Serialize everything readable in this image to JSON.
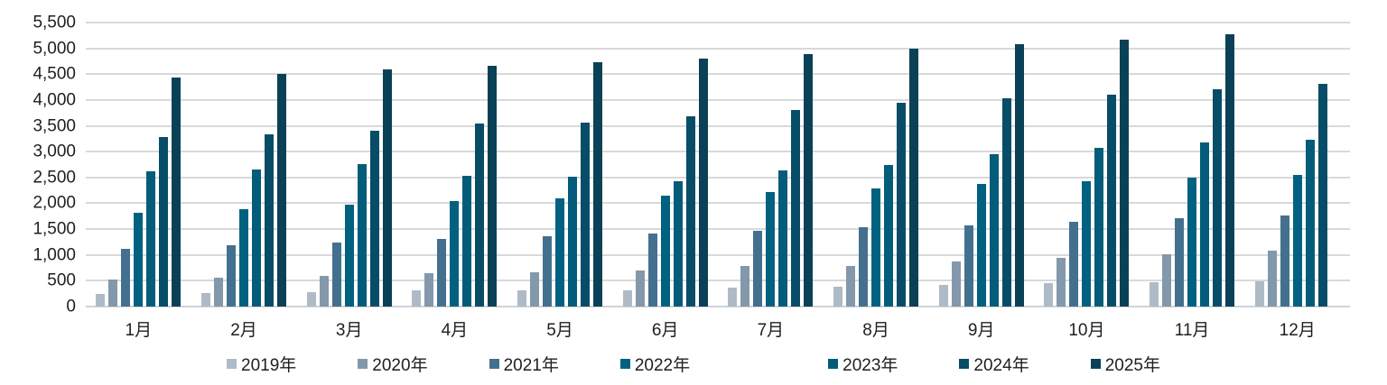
{
  "chart_data": {
    "type": "bar",
    "title": "",
    "categories": [
      "1月",
      "2月",
      "3月",
      "4月",
      "5月",
      "6月",
      "7月",
      "8月",
      "9月",
      "10月",
      "11月",
      "12月"
    ],
    "series": [
      {
        "name": "2019年",
        "color": "#aebbc7",
        "values": [
          240,
          260,
          280,
          310,
          310,
          320,
          360,
          390,
          420,
          450,
          470,
          490
        ]
      },
      {
        "name": "2020年",
        "color": "#8398ab",
        "values": [
          530,
          560,
          600,
          640,
          660,
          700,
          780,
          790,
          870,
          940,
          1010,
          1090
        ]
      },
      {
        "name": "2021年",
        "color": "#44708f",
        "values": [
          1120,
          1190,
          1240,
          1310,
          1360,
          1410,
          1470,
          1530,
          1580,
          1640,
          1720,
          1770
        ]
      },
      {
        "name": "2022年",
        "color": "#016180",
        "values": [
          1820,
          1890,
          1980,
          2050,
          2090,
          2150,
          2210,
          2290,
          2370,
          2420,
          2490,
          2550
        ]
      },
      {
        "name": "2023年",
        "color": "#035c79",
        "values": [
          2620,
          2660,
          2760,
          2530,
          2520,
          2430,
          2630,
          2750,
          2950,
          3070,
          3180,
          3230
        ]
      },
      {
        "name": "2024年",
        "color": "#074d67",
        "values": [
          3290,
          3340,
          3400,
          3540,
          3570,
          3680,
          3810,
          3950,
          4040,
          4110,
          4210,
          4320
        ]
      },
      {
        "name": "2025年",
        "color": "#0b4156",
        "values": [
          4440,
          4510,
          4600,
          4660,
          4740,
          4810,
          4890,
          5000,
          5080,
          5170,
          5280,
          null
        ]
      }
    ],
    "ylim": [
      0,
      5500
    ],
    "ytick_step": 500,
    "yticks": [
      "0",
      "500",
      "1,000",
      "1,500",
      "2,000",
      "2,500",
      "3,000",
      "3,500",
      "4,000",
      "4,500",
      "5,000",
      "5,500"
    ],
    "grid": true,
    "legend_position": "bottom",
    "legend_labels": [
      "2019年",
      "2020年",
      "2021年",
      "2022年",
      "2023年",
      "2024年",
      "2025年"
    ]
  },
  "colors": {
    "gridline": "#d9d9d9",
    "axis_line": "#d0d3d6",
    "label_text": "#1f1f1f",
    "background": "#ffffff"
  }
}
